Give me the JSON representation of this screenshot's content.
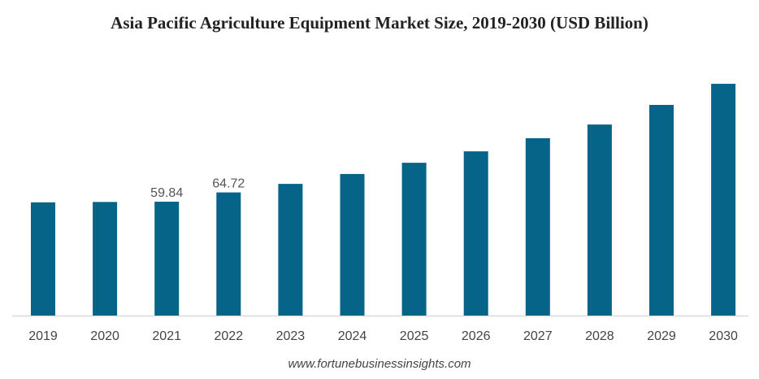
{
  "chart_data": {
    "type": "bar",
    "title": "Asia Pacific Agriculture Equipment Market Size, 2019-2030 (USD Billion)",
    "categories": [
      "2019",
      "2020",
      "2021",
      "2022",
      "2023",
      "2024",
      "2025",
      "2026",
      "2027",
      "2028",
      "2029",
      "2030"
    ],
    "values": [
      59.5,
      59.7,
      59.84,
      64.72,
      69.2,
      74.4,
      80.3,
      86.3,
      93.2,
      100.4,
      110.7,
      121.8
    ],
    "data_labels": {
      "2021": "59.84",
      "2022": "64.72"
    },
    "xlabel": "",
    "ylabel": "",
    "ylim": [
      0,
      130
    ],
    "grid": false,
    "bar_color": "#056488",
    "source": "www.fortunebusinessinsights.com"
  }
}
